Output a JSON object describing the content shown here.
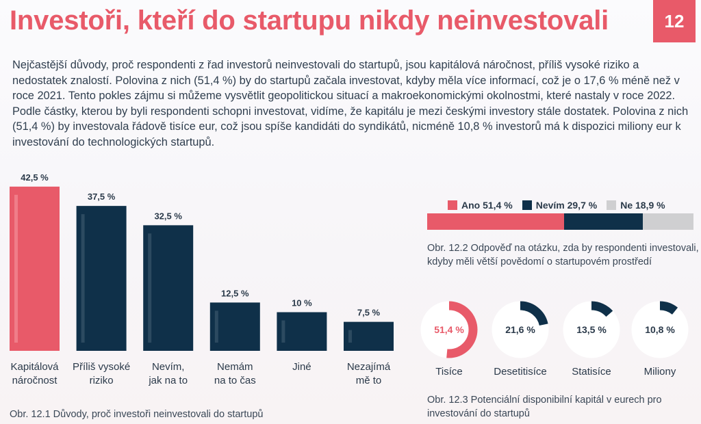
{
  "header": {
    "title": "Investoři, kteří do startupu nikdy neinvestovali",
    "page_number": "12"
  },
  "intro_text": "Nejčastější důvody, proč respondenti z řad investorů neinvestovali do startupů, jsou kapitálová náročnost, příliš vysoké riziko a nedostatek znalostí. Polovina z nich (51,4 %) by do startupů začala investovat, kdyby měla více informací, což je o 17,6 % méně než v roce 2021. Tento pokles zájmu si můžeme vysvětlit geopolitickou situací a makroekonomickými okolnostmi, které nastaly v roce 2022. Podle částky, kterou by byli respondenti schopni investovat, vidíme, že kapitálu je mezi českými investory stále dostatek. Polovina z nich (51,4 %) by investovala řádově tisíce eur, což jsou spíše kandidáti do syndikátů, nicméně 10,8 % investorů má k dispozici miliony eur k investování do technologických startupů.",
  "colors": {
    "accent": "#e85a69",
    "navy": "#0f3049",
    "grey": "#cfcfd1",
    "bar_highlight_pink": "#f07d89",
    "bar_highlight_navy": "#2c4a60"
  },
  "chart_data": [
    {
      "type": "bar",
      "categories": [
        "Kapitálová náročnost",
        "Příliš vysoké riziko",
        "Nevím, jak na to",
        "Nemám na to čas",
        "Jiné",
        "Nezajímá mě to"
      ],
      "category_lines": [
        [
          "Kapitálová",
          "náročnost"
        ],
        [
          "Příliš vysoké",
          "riziko"
        ],
        [
          "Nevím,",
          "jak na to"
        ],
        [
          "Nemám",
          "na to čas"
        ],
        [
          "Jiné"
        ],
        [
          "Nezajímá",
          "mě to"
        ]
      ],
      "values": [
        42.5,
        37.5,
        32.5,
        12.5,
        10,
        7.5
      ],
      "value_labels": [
        "42,5 %",
        "37,5 %",
        "32,5 %",
        "12,5 %",
        "10 %",
        "7,5 %"
      ],
      "caption": "Obr. 12.1 Důvody, proč investoři neinvestovali do startupů"
    },
    {
      "type": "bar",
      "orientation": "horizontal-stacked",
      "series": [
        {
          "name": "Ano",
          "value": 51.4,
          "label": "Ano 51,4 %",
          "color": "#e85a69"
        },
        {
          "name": "Nevím",
          "value": 29.7,
          "label": "Nevím 29,7 %",
          "color": "#0f3049"
        },
        {
          "name": "Ne",
          "value": 18.9,
          "label": "Ne 18,9 %",
          "color": "#cfcfd1"
        }
      ],
      "caption_lines": [
        "Obr. 12.2 Odpověď na otázku, zda by respondenti investovali,",
        "kdyby měli větší povědomí o startupovém prostředí"
      ]
    },
    {
      "type": "pie",
      "style": "donut",
      "categories": [
        "Tisíce",
        "Desetitisíce",
        "Statisíce",
        "Miliony"
      ],
      "values": [
        51.4,
        21.6,
        13.5,
        10.8
      ],
      "value_labels": [
        "51,4 %",
        "21,6 %",
        "13,5 %",
        "10,8 %"
      ],
      "caption_lines": [
        "Obr. 12.3 Potenciální disponibilní kapitál v eurech pro",
        "investování do startupů"
      ]
    }
  ]
}
